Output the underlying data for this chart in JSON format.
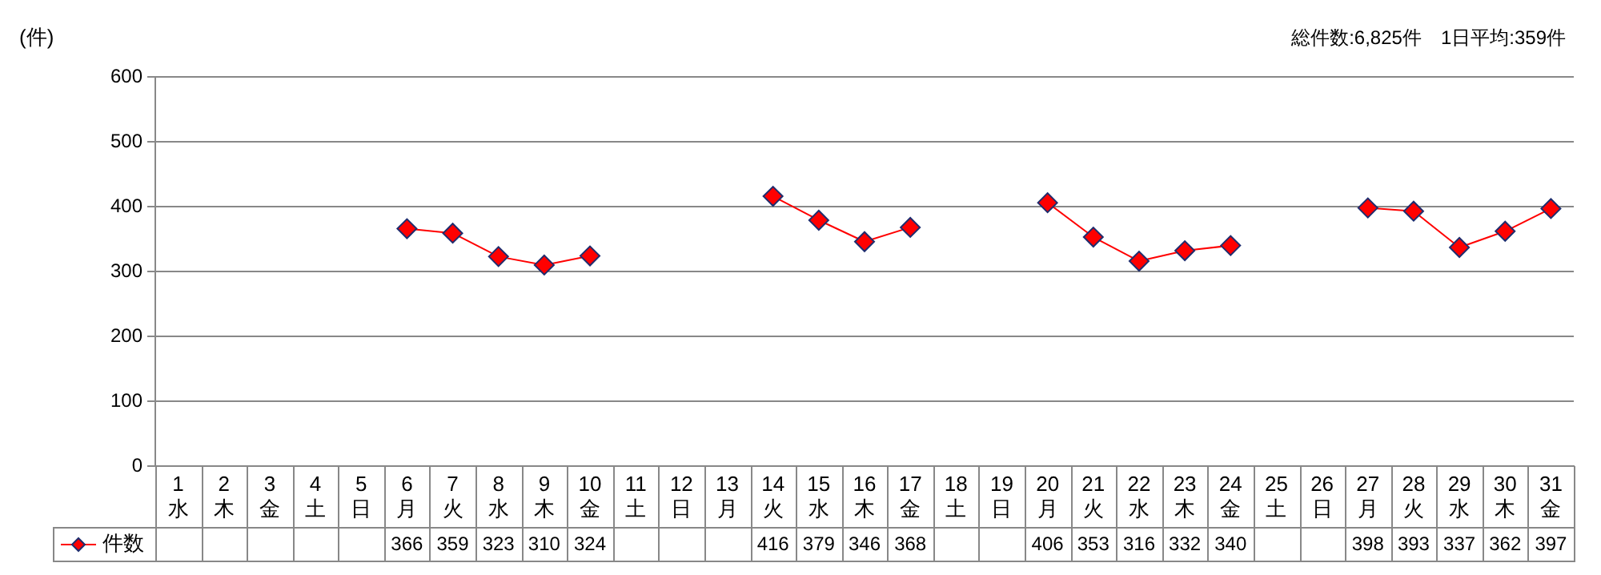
{
  "chart_data": {
    "type": "line",
    "ylabel": "(件)",
    "annotations": [
      "総件数:6,825件　1日平均:359件"
    ],
    "categories": [
      "1 水",
      "2 木",
      "3 金",
      "4 土",
      "5 日",
      "6 月",
      "7 火",
      "8 水",
      "9 木",
      "10 金",
      "11 土",
      "12 日",
      "13 月",
      "14 火",
      "15 水",
      "16 木",
      "17 金",
      "18 土",
      "19 日",
      "20 月",
      "21 火",
      "22 水",
      "23 木",
      "24 金",
      "25 土",
      "26 日",
      "27 月",
      "28 火",
      "29 水",
      "30 木",
      "31 金"
    ],
    "series": [
      {
        "name": "件数",
        "color": "#ff0000",
        "values": [
          null,
          null,
          null,
          null,
          null,
          366,
          359,
          323,
          310,
          324,
          null,
          null,
          null,
          416,
          379,
          346,
          368,
          null,
          null,
          406,
          353,
          316,
          332,
          340,
          null,
          null,
          398,
          393,
          337,
          362,
          397
        ]
      }
    ],
    "ylim": [
      0,
      600
    ],
    "yticks": [
      0,
      100,
      200,
      300,
      400,
      500,
      600
    ],
    "grid": "y",
    "legend": "bottom",
    "marker": "diamond",
    "line_style": "solid",
    "data_labels": true
  }
}
